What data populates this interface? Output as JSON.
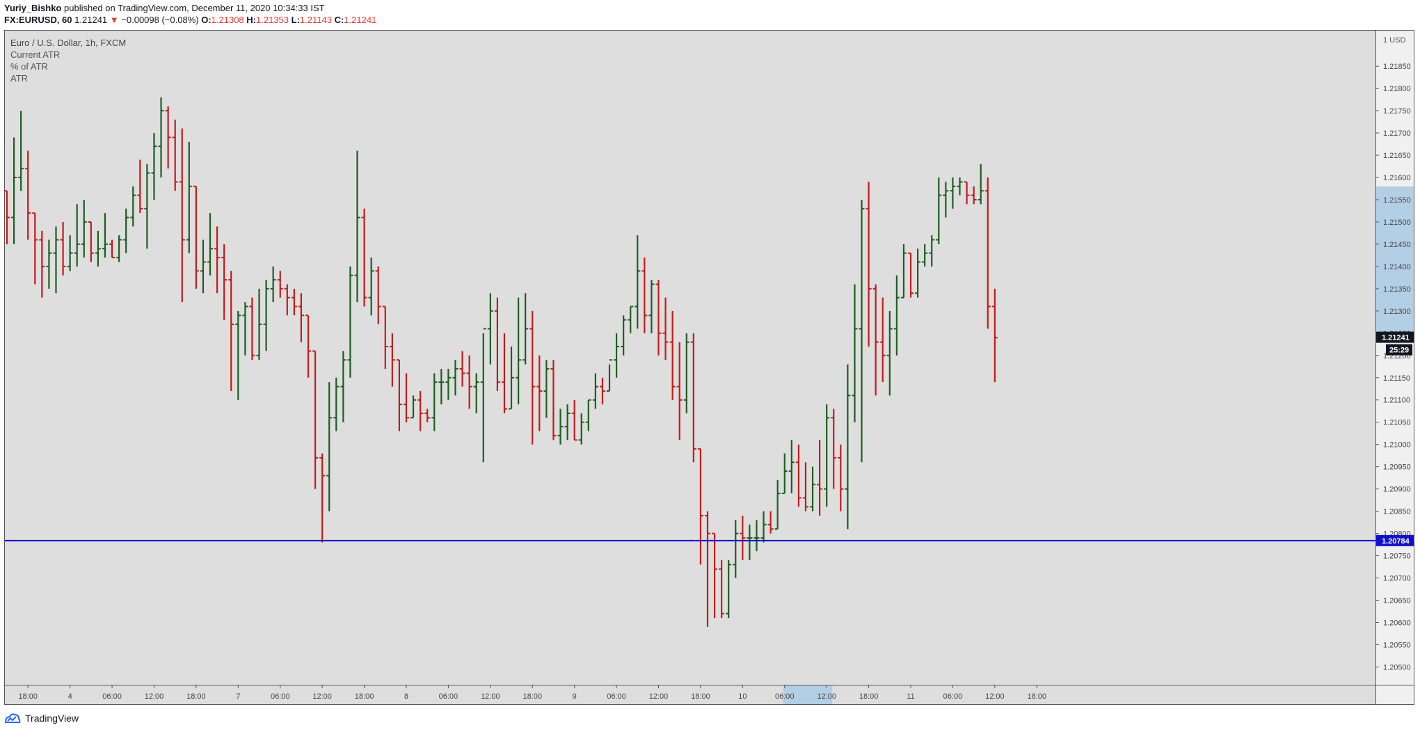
{
  "header": {
    "author": "Yuriy_Bishko",
    "published": "published on TradingView.com, December 11, 2020 10:34:33 IST",
    "symbol": "FX:EURUSD, 60",
    "last": "1.21241",
    "arrow": "▼",
    "change": "−0.00098 (−0.08%)",
    "o_label": "O:",
    "o": "1.21308",
    "h_label": "H:",
    "h": "1.21353",
    "l_label": "L:",
    "l": "1.21143",
    "c_label": "C:",
    "c": "1.21241"
  },
  "legend": {
    "title": "Euro / U.S. Dollar, 1h, FXCM",
    "items": [
      "Current ATR",
      "% of ATR",
      "ATR"
    ]
  },
  "footer": {
    "brand": "TradingView",
    "icon": "tradingview-logo-icon"
  },
  "colors": {
    "up": "#1e5d20",
    "down": "#c41a1a",
    "background": "#dedede",
    "hline": "#1010cc",
    "highlight": "#b3cfe6"
  },
  "chart_data": {
    "type": "ohlc",
    "currency_label": "1 USD",
    "ylim": [
      1.2046,
      1.2193
    ],
    "y_ticks": [
      "1.21850",
      "1.21800",
      "1.21750",
      "1.21700",
      "1.21650",
      "1.21600",
      "1.21550",
      "1.21500",
      "1.21450",
      "1.21400",
      "1.21350",
      "1.21300",
      "1.21250",
      "1.21200",
      "1.21150",
      "1.21100",
      "1.21050",
      "1.21000",
      "1.20950",
      "1.20900",
      "1.20850",
      "1.20800",
      "1.20750",
      "1.20700",
      "1.20650",
      "1.20600",
      "1.20550",
      "1.20500"
    ],
    "x_ticks": [
      {
        "label": "18:00",
        "bar": 3
      },
      {
        "label": "4",
        "bar": 9
      },
      {
        "label": "06:00",
        "bar": 15
      },
      {
        "label": "12:00",
        "bar": 21
      },
      {
        "label": "18:00",
        "bar": 27
      },
      {
        "label": "7",
        "bar": 33
      },
      {
        "label": "06:00",
        "bar": 39
      },
      {
        "label": "12:00",
        "bar": 45
      },
      {
        "label": "18:00",
        "bar": 51
      },
      {
        "label": "8",
        "bar": 57
      },
      {
        "label": "06:00",
        "bar": 63
      },
      {
        "label": "12:00",
        "bar": 69
      },
      {
        "label": "18:00",
        "bar": 75
      },
      {
        "label": "9",
        "bar": 81
      },
      {
        "label": "06:00",
        "bar": 87
      },
      {
        "label": "12:00",
        "bar": 93
      },
      {
        "label": "18:00",
        "bar": 99
      },
      {
        "label": "10",
        "bar": 105
      },
      {
        "label": "06:00",
        "bar": 111
      },
      {
        "label": "12:00",
        "bar": 117
      },
      {
        "label": "18:00",
        "bar": 123
      },
      {
        "label": "11",
        "bar": 129
      },
      {
        "label": "06:00",
        "bar": 135
      },
      {
        "label": "12:00",
        "bar": 141
      },
      {
        "label": "18:00",
        "bar": 147
      }
    ],
    "x_highlight_bars": [
      110.8,
      117.8
    ],
    "y_highlight": [
      1.2125,
      1.2158
    ],
    "horizontal_line": {
      "value": 1.20784,
      "label": "1.20784"
    },
    "last_price": {
      "value": 1.21241,
      "label": "1.21241",
      "countdown": "25:29"
    },
    "bars": [
      [
        1.2157,
        1.2157,
        1.2145,
        1.2151
      ],
      [
        1.2151,
        1.2169,
        1.2145,
        1.216
      ],
      [
        1.216,
        1.2175,
        1.2157,
        1.2162
      ],
      [
        1.2162,
        1.2166,
        1.2146,
        1.2152
      ],
      [
        1.2152,
        1.2152,
        1.2136,
        1.2146
      ],
      [
        1.2146,
        1.2148,
        1.2133,
        1.214
      ],
      [
        1.214,
        1.2146,
        1.2135,
        1.2143
      ],
      [
        1.2143,
        1.2149,
        1.2134,
        1.2146
      ],
      [
        1.2146,
        1.215,
        1.2138,
        1.214
      ],
      [
        1.214,
        1.2147,
        1.2139,
        1.2143
      ],
      [
        1.2143,
        1.2154,
        1.214,
        1.2145
      ],
      [
        1.2145,
        1.2155,
        1.2142,
        1.215
      ],
      [
        1.215,
        1.215,
        1.2141,
        1.2143
      ],
      [
        1.2143,
        1.2148,
        1.214,
        1.2144
      ],
      [
        1.2144,
        1.2152,
        1.2142,
        1.2145
      ],
      [
        1.2145,
        1.2146,
        1.2142,
        1.2142
      ],
      [
        1.2142,
        1.2147,
        1.2141,
        1.2146
      ],
      [
        1.2146,
        1.2153,
        1.2143,
        1.2151
      ],
      [
        1.2151,
        1.2158,
        1.2149,
        1.2156
      ],
      [
        1.2156,
        1.2164,
        1.2152,
        1.2153
      ],
      [
        1.2153,
        1.2163,
        1.2144,
        1.2161
      ],
      [
        1.2161,
        1.217,
        1.2155,
        1.2167
      ],
      [
        1.2167,
        1.2178,
        1.216,
        1.2175
      ],
      [
        1.2175,
        1.2176,
        1.2162,
        1.2169
      ],
      [
        1.2169,
        1.2173,
        1.2157,
        1.2159
      ],
      [
        1.2159,
        1.2171,
        1.2132,
        1.2146
      ],
      [
        1.2146,
        1.2168,
        1.2143,
        1.2158
      ],
      [
        1.2158,
        1.2158,
        1.2135,
        1.2139
      ],
      [
        1.2139,
        1.2146,
        1.2134,
        1.2141
      ],
      [
        1.2141,
        1.2152,
        1.2138,
        1.2144
      ],
      [
        1.2144,
        1.2149,
        1.2134,
        1.2142
      ],
      [
        1.2142,
        1.2145,
        1.2128,
        1.2137
      ],
      [
        1.2137,
        1.2139,
        1.2112,
        1.2127
      ],
      [
        1.2127,
        1.213,
        1.211,
        1.2129
      ],
      [
        1.2129,
        1.2132,
        1.212,
        1.2131
      ],
      [
        1.2131,
        1.2133,
        1.2119,
        1.212
      ],
      [
        1.212,
        1.2135,
        1.2119,
        1.2127
      ],
      [
        1.2127,
        1.2137,
        1.2121,
        1.2135
      ],
      [
        1.2135,
        1.214,
        1.2132,
        1.2137
      ],
      [
        1.2137,
        1.2139,
        1.2133,
        1.2135
      ],
      [
        1.2135,
        1.2136,
        1.2129,
        1.2133
      ],
      [
        1.2133,
        1.2135,
        1.2129,
        1.2131
      ],
      [
        1.2131,
        1.2134,
        1.2123,
        1.2129
      ],
      [
        1.2129,
        1.2129,
        1.2115,
        1.2121
      ],
      [
        1.2121,
        1.2121,
        1.209,
        1.2097
      ],
      [
        1.2097,
        1.2098,
        1.2078,
        1.2093
      ],
      [
        1.2093,
        1.2114,
        1.2085,
        1.2106
      ],
      [
        1.2106,
        1.2115,
        1.2103,
        1.2113
      ],
      [
        1.2113,
        1.2121,
        1.2105,
        1.2119
      ],
      [
        1.2119,
        1.214,
        1.2115,
        1.2138
      ],
      [
        1.2138,
        1.2166,
        1.2132,
        1.2151
      ],
      [
        1.2151,
        1.2153,
        1.2131,
        1.2133
      ],
      [
        1.2133,
        1.2142,
        1.2129,
        1.2139
      ],
      [
        1.2139,
        1.214,
        1.2127,
        1.2131
      ],
      [
        1.2131,
        1.2131,
        1.2117,
        1.2122
      ],
      [
        1.2122,
        1.2125,
        1.2113,
        1.2119
      ],
      [
        1.2119,
        1.2119,
        1.2103,
        1.2109
      ],
      [
        1.2109,
        1.2116,
        1.2105,
        1.2106
      ],
      [
        1.2106,
        1.2111,
        1.2106,
        1.211
      ],
      [
        1.211,
        1.2112,
        1.2103,
        1.2107
      ],
      [
        1.2107,
        1.2108,
        1.2105,
        1.2106
      ],
      [
        1.2106,
        1.2116,
        1.2103,
        1.2114
      ],
      [
        1.2114,
        1.2117,
        1.2109,
        1.2114
      ],
      [
        1.2114,
        1.2117,
        1.211,
        1.2115
      ],
      [
        1.2115,
        1.2119,
        1.2111,
        1.2117
      ],
      [
        1.2117,
        1.2121,
        1.2113,
        1.2116
      ],
      [
        1.2116,
        1.212,
        1.2108,
        1.2113
      ],
      [
        1.2113,
        1.2116,
        1.2107,
        1.2114
      ],
      [
        1.2114,
        1.2125,
        1.2096,
        1.2126
      ],
      [
        1.2126,
        1.2134,
        1.2118,
        1.213
      ],
      [
        1.213,
        1.2133,
        1.2112,
        1.2114
      ],
      [
        1.2114,
        1.2125,
        1.2107,
        1.2108
      ],
      [
        1.2108,
        1.2122,
        1.2108,
        1.2115
      ],
      [
        1.2115,
        1.2133,
        1.2109,
        1.2119
      ],
      [
        1.2119,
        1.2134,
        1.2118,
        1.2126
      ],
      [
        1.2126,
        1.213,
        1.21,
        1.2113
      ],
      [
        1.2113,
        1.212,
        1.2103,
        1.2112
      ],
      [
        1.2112,
        1.2119,
        1.2106,
        1.2117
      ],
      [
        1.2117,
        1.2119,
        1.2101,
        1.2102
      ],
      [
        1.2102,
        1.2108,
        1.21,
        1.2104
      ],
      [
        1.2104,
        1.2109,
        1.2101,
        1.2107
      ],
      [
        1.2107,
        1.211,
        1.2101,
        1.2101
      ],
      [
        1.2101,
        1.2107,
        1.21,
        1.2105
      ],
      [
        1.2105,
        1.211,
        1.2103,
        1.211
      ],
      [
        1.211,
        1.2116,
        1.2108,
        1.2113
      ],
      [
        1.2113,
        1.2115,
        1.2109,
        1.2112
      ],
      [
        1.2112,
        1.2118,
        1.2112,
        1.2119
      ],
      [
        1.2119,
        1.2125,
        1.2115,
        1.2122
      ],
      [
        1.2122,
        1.2129,
        1.212,
        1.2128
      ],
      [
        1.2128,
        1.2131,
        1.2125,
        1.2131
      ],
      [
        1.2131,
        1.2147,
        1.2126,
        1.2139
      ],
      [
        1.2139,
        1.2142,
        1.2125,
        1.2129
      ],
      [
        1.2129,
        1.2137,
        1.2125,
        1.2136
      ],
      [
        1.2136,
        1.2137,
        1.212,
        1.2125
      ],
      [
        1.2125,
        1.2133,
        1.2119,
        1.2123
      ],
      [
        1.2123,
        1.213,
        1.211,
        1.2113
      ],
      [
        1.2113,
        1.2123,
        1.2101,
        1.211
      ],
      [
        1.211,
        1.2125,
        1.2107,
        1.2123
      ],
      [
        1.2123,
        1.2125,
        1.2096,
        1.2099
      ],
      [
        1.2099,
        1.2099,
        1.2073,
        1.2084
      ],
      [
        1.2084,
        1.2085,
        1.2059,
        1.208
      ],
      [
        1.208,
        1.208,
        1.2061,
        1.2072
      ],
      [
        1.2072,
        1.2074,
        1.2061,
        1.2062
      ],
      [
        1.2062,
        1.2074,
        1.2061,
        1.2073
      ],
      [
        1.2073,
        1.2083,
        1.207,
        1.208
      ],
      [
        1.208,
        1.2084,
        1.2074,
        1.2079
      ],
      [
        1.2079,
        1.2082,
        1.2074,
        1.2079
      ],
      [
        1.2079,
        1.2083,
        1.2076,
        1.2079
      ],
      [
        1.2079,
        1.2085,
        1.2078,
        1.2082
      ],
      [
        1.2082,
        1.2085,
        1.208,
        1.2081
      ],
      [
        1.2081,
        1.2092,
        1.2081,
        1.2089
      ],
      [
        1.2089,
        1.2098,
        1.2089,
        1.2094
      ],
      [
        1.2094,
        1.2101,
        1.2089,
        1.2096
      ],
      [
        1.2096,
        1.21,
        1.2086,
        1.2088
      ],
      [
        1.2088,
        1.2096,
        1.2085,
        1.2086
      ],
      [
        1.2086,
        1.2095,
        1.2085,
        1.2091
      ],
      [
        1.2091,
        1.2101,
        1.2084,
        1.209
      ],
      [
        1.209,
        1.2109,
        1.2086,
        1.2106
      ],
      [
        1.2106,
        1.2108,
        1.209,
        1.2097
      ],
      [
        1.2097,
        1.21,
        1.2085,
        1.209
      ],
      [
        1.209,
        1.2118,
        1.2081,
        1.2111
      ],
      [
        1.2111,
        1.2136,
        1.2105,
        1.2126
      ],
      [
        1.2126,
        1.2155,
        1.2096,
        1.2153
      ],
      [
        1.2153,
        1.2159,
        1.2122,
        1.2135
      ],
      [
        1.2135,
        1.2136,
        1.2111,
        1.2123
      ],
      [
        1.2123,
        1.2133,
        1.2114,
        1.212
      ],
      [
        1.212,
        1.213,
        1.2111,
        1.2126
      ],
      [
        1.2126,
        1.2138,
        1.212,
        1.2133
      ],
      [
        1.2133,
        1.2145,
        1.2133,
        1.2143
      ],
      [
        1.2143,
        1.2143,
        1.2133,
        1.2134
      ],
      [
        1.2134,
        1.2144,
        1.2133,
        1.2141
      ],
      [
        1.2141,
        1.2145,
        1.214,
        1.2143
      ],
      [
        1.2143,
        1.2147,
        1.214,
        1.2146
      ],
      [
        1.2146,
        1.216,
        1.2145,
        1.2156
      ],
      [
        1.2156,
        1.2159,
        1.2151,
        1.2157
      ],
      [
        1.2157,
        1.216,
        1.2153,
        1.2158
      ],
      [
        1.2158,
        1.216,
        1.2156,
        1.2159
      ],
      [
        1.2159,
        1.2159,
        1.2154,
        1.2156
      ],
      [
        1.2156,
        1.2158,
        1.2154,
        1.2155
      ],
      [
        1.2155,
        1.2163,
        1.2154,
        1.2157
      ],
      [
        1.2157,
        1.216,
        1.2126,
        1.2131
      ],
      [
        1.2131,
        1.2135,
        1.2114,
        1.2124
      ]
    ]
  }
}
